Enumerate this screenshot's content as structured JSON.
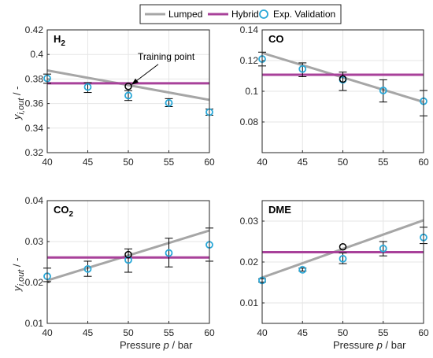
{
  "legend": {
    "items": [
      {
        "label": "Lumped",
        "color": "#a6a6a6",
        "kind": "line"
      },
      {
        "label": "Hybrid",
        "color": "#a8419a",
        "kind": "line"
      },
      {
        "label": "Exp. Validation",
        "color": "#2aa8d8",
        "kind": "marker"
      }
    ]
  },
  "figure": {
    "ylabel_main": "y",
    "ylabel_sub": "i,out",
    "ylabel_unit": " / -",
    "xlabel_main": "Pressure  ",
    "xlabel_var": "p",
    "xlabel_unit": " / bar"
  },
  "colors": {
    "lumped": "#a6a6a6",
    "hybrid": "#a8419a",
    "experiment": "#2aa8d8",
    "training": "#000000",
    "errorbar": "#000000",
    "grid": "#e6e6e6",
    "axis": "#262626"
  },
  "chart_data": [
    {
      "type": "line",
      "panel_label": "H",
      "panel_label_sub": "2",
      "xlim": [
        40,
        60
      ],
      "ylim": [
        0.32,
        0.42
      ],
      "xticks": [
        40,
        45,
        50,
        55,
        60
      ],
      "yticks": [
        0.32,
        0.34,
        0.36,
        0.38,
        0.4,
        0.42
      ],
      "ytick_labels": [
        "0.32",
        "0.34",
        "0.36",
        "0.38",
        "0.4",
        "0.42"
      ],
      "grid": true,
      "series": [
        {
          "name": "Lumped",
          "x": [
            40,
            60
          ],
          "y": [
            0.387,
            0.363
          ]
        },
        {
          "name": "Hybrid",
          "x": [
            40,
            60
          ],
          "y": [
            0.3765,
            0.3765
          ]
        }
      ],
      "experiment": {
        "name": "Exp. Validation",
        "x": [
          40,
          45,
          50,
          55,
          60
        ],
        "y": [
          0.3805,
          0.3735,
          0.3665,
          0.3605,
          0.353
        ],
        "err_low": [
          0.3765,
          0.369,
          0.3625,
          0.3575,
          0.3505
        ],
        "err_high": [
          0.384,
          0.377,
          0.3705,
          0.364,
          0.3555
        ]
      },
      "training_point": {
        "x": 50,
        "y": 0.374
      },
      "annotation": {
        "text": "Training point"
      }
    },
    {
      "type": "line",
      "panel_label": "CO",
      "panel_label_sub": "",
      "xlim": [
        40,
        60
      ],
      "ylim": [
        0.06,
        0.14
      ],
      "xticks": [
        40,
        45,
        50,
        55,
        60
      ],
      "yticks": [
        0.08,
        0.1,
        0.12,
        0.14
      ],
      "ytick_labels": [
        "0.08",
        "0.1",
        "0.12",
        "0.14"
      ],
      "grid": true,
      "series": [
        {
          "name": "Lumped",
          "x": [
            40,
            60
          ],
          "y": [
            0.125,
            0.093
          ]
        },
        {
          "name": "Hybrid",
          "x": [
            40,
            60
          ],
          "y": [
            0.1108,
            0.1108
          ]
        }
      ],
      "experiment": {
        "name": "Exp. Validation",
        "x": [
          40,
          45,
          50,
          55,
          60
        ],
        "y": [
          0.121,
          0.1145,
          0.1075,
          0.1005,
          0.0935
        ],
        "err_low": [
          0.1165,
          0.1095,
          0.1005,
          0.093,
          0.084
        ],
        "err_high": [
          0.1255,
          0.1185,
          0.1125,
          0.1075,
          0.1005
        ]
      },
      "training_point": {
        "x": 50,
        "y": 0.108
      }
    },
    {
      "type": "line",
      "panel_label": "CO",
      "panel_label_sub": "2",
      "xlim": [
        40,
        60
      ],
      "ylim": [
        0.01,
        0.04
      ],
      "xticks": [
        40,
        45,
        50,
        55,
        60
      ],
      "yticks": [
        0.01,
        0.02,
        0.03,
        0.04
      ],
      "ytick_labels": [
        "0.01",
        "0.02",
        "0.03",
        "0.04"
      ],
      "grid": true,
      "series": [
        {
          "name": "Lumped",
          "x": [
            40,
            60
          ],
          "y": [
            0.0205,
            0.0327
          ]
        },
        {
          "name": "Hybrid",
          "x": [
            40,
            60
          ],
          "y": [
            0.0261,
            0.0261
          ]
        }
      ],
      "experiment": {
        "name": "Exp. Validation",
        "x": [
          40,
          45,
          50,
          55,
          60
        ],
        "y": [
          0.0215,
          0.0233,
          0.0255,
          0.0272,
          0.0292
        ],
        "err_low": [
          0.0202,
          0.0215,
          0.0225,
          0.0238,
          0.0252
        ],
        "err_high": [
          0.0235,
          0.0252,
          0.0282,
          0.0308,
          0.0333
        ]
      },
      "training_point": {
        "x": 50,
        "y": 0.0268
      }
    },
    {
      "type": "line",
      "panel_label": "DME",
      "panel_label_sub": "",
      "xlim": [
        40,
        60
      ],
      "ylim": [
        0.005,
        0.035
      ],
      "xticks": [
        40,
        45,
        50,
        55,
        60
      ],
      "yticks": [
        0.01,
        0.02,
        0.03
      ],
      "ytick_labels": [
        "0.01",
        "0.02",
        "0.03"
      ],
      "grid": true,
      "series": [
        {
          "name": "Lumped",
          "x": [
            40,
            60
          ],
          "y": [
            0.0162,
            0.0302
          ]
        },
        {
          "name": "Hybrid",
          "x": [
            40,
            60
          ],
          "y": [
            0.0224,
            0.0224
          ]
        }
      ],
      "experiment": {
        "name": "Exp. Validation",
        "x": [
          40,
          45,
          50,
          55,
          60
        ],
        "y": [
          0.0155,
          0.0181,
          0.0208,
          0.0233,
          0.026
        ],
        "err_low": [
          0.0151,
          0.0178,
          0.0196,
          0.0215,
          0.0245
        ],
        "err_high": [
          0.0159,
          0.0185,
          0.0222,
          0.025,
          0.0285
        ]
      },
      "training_point": {
        "x": 50,
        "y": 0.0237
      }
    }
  ]
}
